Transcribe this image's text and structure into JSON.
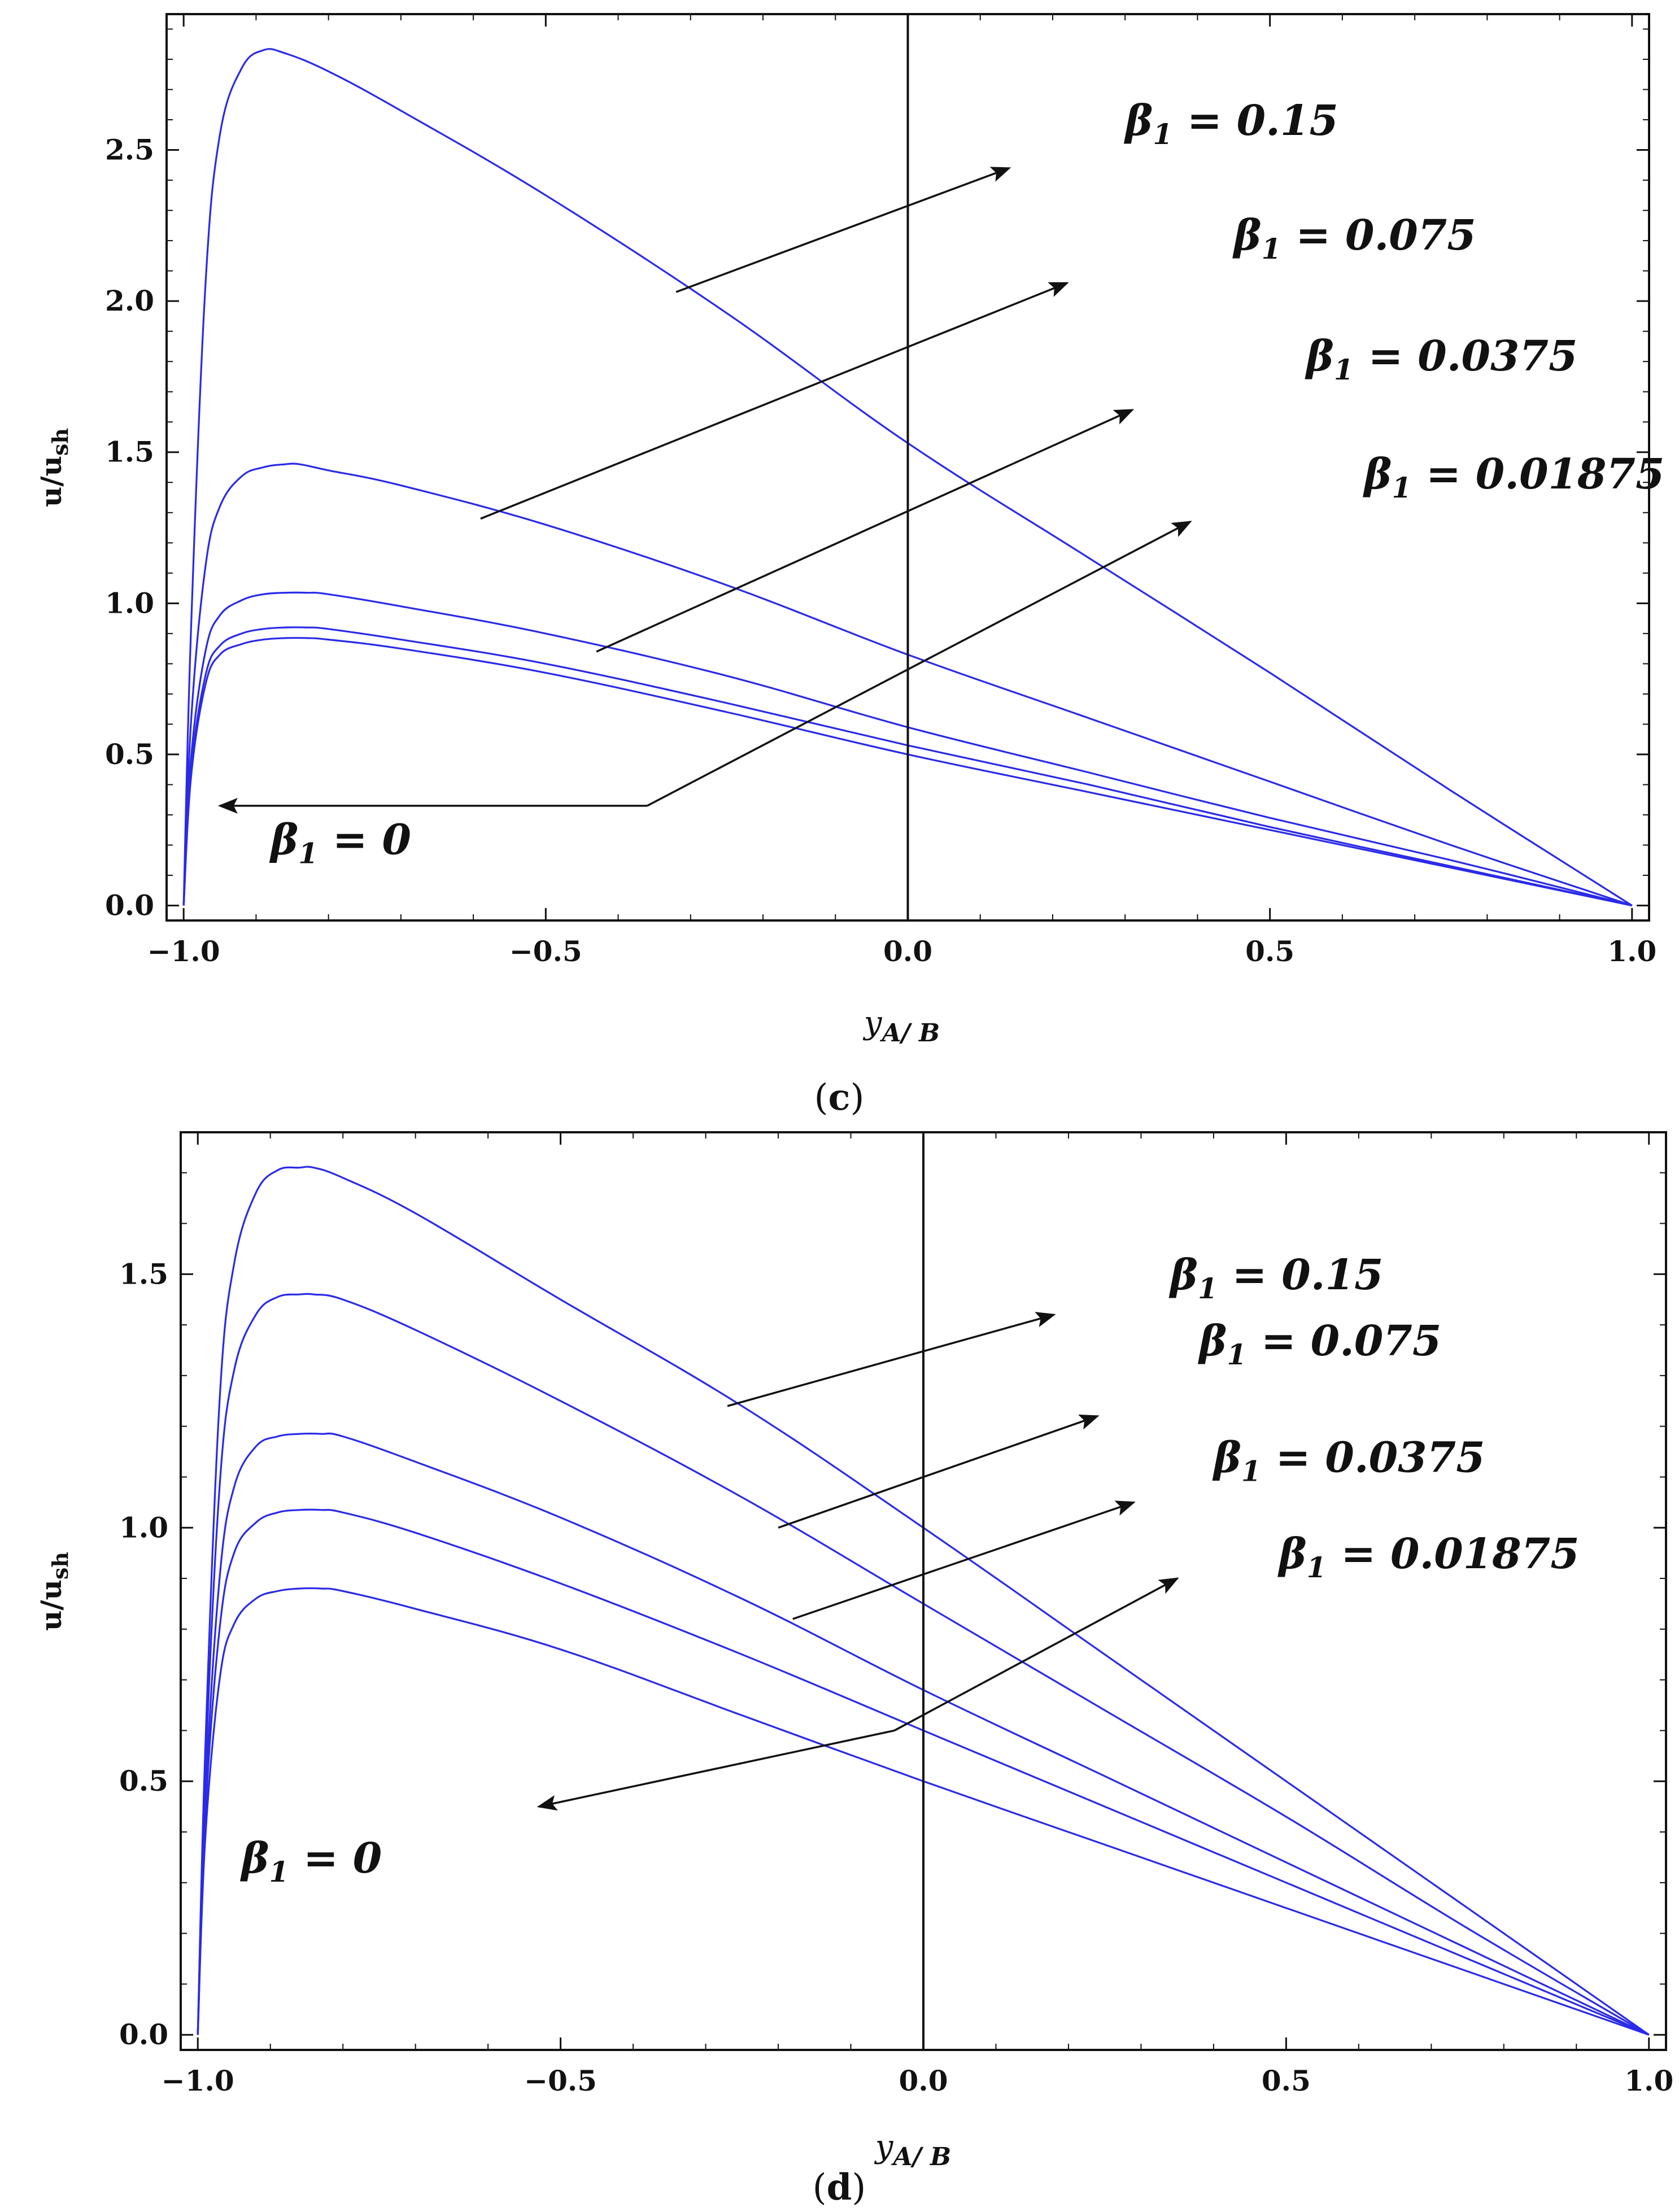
{
  "chart_data": [
    {
      "type": "line",
      "panel": "c",
      "caption_letter": "c",
      "xlabel": "y",
      "xlabel_sub": "A/ B",
      "ylabel": "u/u",
      "ylabel_sub": "sh",
      "xlim": [
        -1.0,
        1.0
      ],
      "ylim": [
        0.0,
        2.9
      ],
      "xticks": [
        "-1.0",
        "-0.5",
        "0.0",
        "0.5",
        "1.0"
      ],
      "yticks": [
        "0.0",
        "0.5",
        "1.0",
        "1.5",
        "2.0",
        "2.5"
      ],
      "xtick_values": [
        -1.0,
        -0.5,
        0.0,
        0.5,
        1.0
      ],
      "ytick_values": [
        0.0,
        0.5,
        1.0,
        1.5,
        2.0,
        2.5
      ],
      "line_color": "#2a2ae8",
      "series": [
        {
          "name": "β1 = 0.15",
          "beta": 0.15,
          "x": [
            -1.0,
            -0.99,
            -0.97,
            -0.95,
            -0.92,
            -0.89,
            -0.86,
            -0.8,
            -0.7,
            -0.5,
            -0.25,
            0.0,
            0.25,
            0.5,
            0.75,
            1.0
          ],
          "y": [
            0.0,
            0.9,
            2.05,
            2.55,
            2.77,
            2.83,
            2.82,
            2.76,
            2.63,
            2.35,
            1.96,
            1.53,
            1.15,
            0.77,
            0.38,
            0.0
          ]
        },
        {
          "name": "β1 = 0.075",
          "beta": 0.075,
          "x": [
            -1.0,
            -0.99,
            -0.97,
            -0.95,
            -0.92,
            -0.89,
            -0.86,
            -0.84,
            -0.8,
            -0.7,
            -0.5,
            -0.25,
            0.0,
            0.25,
            0.5,
            0.75,
            1.0
          ],
          "y": [
            0.0,
            0.6,
            1.12,
            1.32,
            1.42,
            1.45,
            1.46,
            1.46,
            1.44,
            1.39,
            1.26,
            1.06,
            0.83,
            0.62,
            0.41,
            0.2,
            0.0
          ]
        },
        {
          "name": "β1 = 0.0375",
          "beta": 0.0375,
          "x": [
            -1.0,
            -0.99,
            -0.97,
            -0.95,
            -0.92,
            -0.89,
            -0.86,
            -0.83,
            -0.8,
            -0.7,
            -0.5,
            -0.25,
            0.0,
            0.25,
            0.5,
            0.75,
            1.0
          ],
          "y": [
            0.0,
            0.48,
            0.84,
            0.96,
            1.01,
            1.03,
            1.035,
            1.035,
            1.03,
            0.99,
            0.9,
            0.76,
            0.59,
            0.44,
            0.29,
            0.15,
            0.0
          ]
        },
        {
          "name": "β1 = 0.01875",
          "beta": 0.01875,
          "x": [
            -1.0,
            -0.99,
            -0.97,
            -0.95,
            -0.92,
            -0.89,
            -0.86,
            -0.83,
            -0.8,
            -0.7,
            -0.5,
            -0.25,
            0.0,
            0.25,
            0.5,
            0.75,
            1.0
          ],
          "y": [
            0.0,
            0.44,
            0.76,
            0.86,
            0.9,
            0.915,
            0.92,
            0.92,
            0.915,
            0.88,
            0.8,
            0.67,
            0.53,
            0.4,
            0.26,
            0.13,
            0.0
          ]
        },
        {
          "name": "β1 = 0",
          "beta": 0,
          "x": [
            -1.0,
            -0.99,
            -0.97,
            -0.95,
            -0.92,
            -0.89,
            -0.86,
            -0.83,
            -0.8,
            -0.7,
            -0.5,
            -0.25,
            0.0,
            0.25,
            0.5,
            0.75,
            1.0
          ],
          "y": [
            0.0,
            0.42,
            0.73,
            0.83,
            0.865,
            0.88,
            0.885,
            0.885,
            0.88,
            0.85,
            0.77,
            0.64,
            0.5,
            0.375,
            0.25,
            0.125,
            0.0
          ]
        }
      ],
      "annotations": [
        {
          "label": "β1 = 0.15",
          "symbol": "β",
          "sub": "1",
          "rest": " = 0.15",
          "arrow_from": [
            -0.32,
            2.03
          ],
          "arrow_to": [
            0.14,
            2.44
          ],
          "text_at": [
            0.3,
            2.55
          ]
        },
        {
          "label": "β1 = 0.075",
          "symbol": "β",
          "sub": "1",
          "rest": " = 0.075",
          "arrow_from": [
            -0.59,
            1.28
          ],
          "arrow_to": [
            0.22,
            2.06
          ],
          "text_at": [
            0.45,
            2.17
          ]
        },
        {
          "label": "β1 = 0.0375",
          "symbol": "β",
          "sub": "1",
          "rest": " = 0.0375",
          "arrow_from": [
            -0.43,
            0.84
          ],
          "arrow_to": [
            0.31,
            1.64
          ],
          "text_at": [
            0.55,
            1.77
          ]
        },
        {
          "label": "β1 = 0.01875",
          "symbol": "β",
          "sub": "1",
          "rest": " = 0.01875",
          "arrow_from": [
            -0.36,
            0.33
          ],
          "arrow_to": [
            0.39,
            1.27
          ],
          "text_at": [
            0.63,
            1.38
          ]
        },
        {
          "label": "β1 = 0",
          "symbol": "β",
          "sub": "1",
          "rest": " = 0",
          "arrow_from": [
            -0.36,
            0.33
          ],
          "arrow_to": [
            -0.95,
            0.33
          ],
          "arrow_only_to_start": true,
          "text_at": [
            -0.88,
            0.17
          ]
        }
      ]
    },
    {
      "type": "line",
      "panel": "d",
      "caption_letter": "d",
      "xlabel": "y",
      "xlabel_sub": "A/ B",
      "ylabel": "u/u",
      "ylabel_sub": "sh",
      "xlim": [
        -1.0,
        1.0
      ],
      "ylim": [
        0.0,
        1.75
      ],
      "xticks": [
        "-1.0",
        "-0.5",
        "0.0",
        "0.5",
        "1.0"
      ],
      "yticks": [
        "0.0",
        "0.5",
        "1.0",
        "1.5"
      ],
      "xtick_values": [
        -1.0,
        -0.5,
        0.0,
        0.5,
        1.0
      ],
      "ytick_values": [
        0.0,
        0.5,
        1.0,
        1.5
      ],
      "line_color": "#2a2ae8",
      "series": [
        {
          "name": "β1 = 0.15",
          "beta": 0.15,
          "x": [
            -1.0,
            -0.99,
            -0.97,
            -0.95,
            -0.92,
            -0.89,
            -0.86,
            -0.84,
            -0.8,
            -0.7,
            -0.5,
            -0.25,
            0.0,
            0.25,
            0.5,
            0.75,
            1.0
          ],
          "y": [
            0.0,
            0.55,
            1.25,
            1.52,
            1.66,
            1.705,
            1.71,
            1.71,
            1.69,
            1.62,
            1.45,
            1.24,
            1.0,
            0.75,
            0.5,
            0.25,
            0.0
          ]
        },
        {
          "name": "β1 = 0.075",
          "beta": 0.075,
          "x": [
            -1.0,
            -0.99,
            -0.97,
            -0.95,
            -0.92,
            -0.89,
            -0.86,
            -0.84,
            -0.8,
            -0.7,
            -0.5,
            -0.25,
            0.0,
            0.25,
            0.5,
            0.75,
            1.0
          ],
          "y": [
            0.0,
            0.5,
            1.08,
            1.31,
            1.42,
            1.455,
            1.46,
            1.46,
            1.45,
            1.39,
            1.25,
            1.06,
            0.85,
            0.64,
            0.43,
            0.21,
            0.0
          ]
        },
        {
          "name": "β1 = 0.0375",
          "beta": 0.0375,
          "x": [
            -1.0,
            -0.99,
            -0.97,
            -0.95,
            -0.92,
            -0.89,
            -0.86,
            -0.83,
            -0.8,
            -0.7,
            -0.5,
            -0.25,
            0.0,
            0.25,
            0.5,
            0.75,
            1.0
          ],
          "y": [
            0.0,
            0.45,
            0.9,
            1.08,
            1.16,
            1.18,
            1.185,
            1.185,
            1.18,
            1.13,
            1.02,
            0.86,
            0.68,
            0.51,
            0.34,
            0.17,
            0.0
          ]
        },
        {
          "name": "β1 = 0.01875",
          "beta": 0.01875,
          "x": [
            -1.0,
            -0.99,
            -0.97,
            -0.95,
            -0.92,
            -0.89,
            -0.86,
            -0.83,
            -0.8,
            -0.7,
            -0.5,
            -0.25,
            0.0,
            0.25,
            0.5,
            0.75,
            1.0
          ],
          "y": [
            0.0,
            0.42,
            0.8,
            0.95,
            1.01,
            1.03,
            1.035,
            1.035,
            1.03,
            0.99,
            0.89,
            0.75,
            0.6,
            0.45,
            0.3,
            0.15,
            0.0
          ]
        },
        {
          "name": "β1 = 0",
          "beta": 0,
          "x": [
            -1.0,
            -0.99,
            -0.97,
            -0.95,
            -0.92,
            -0.89,
            -0.86,
            -0.83,
            -0.8,
            -0.7,
            -0.5,
            -0.25,
            0.0,
            0.25,
            0.5,
            0.75,
            1.0
          ],
          "y": [
            0.0,
            0.38,
            0.7,
            0.81,
            0.86,
            0.875,
            0.88,
            0.88,
            0.875,
            0.84,
            0.76,
            0.63,
            0.5,
            0.375,
            0.25,
            0.125,
            0.0
          ]
        }
      ],
      "annotations": [
        {
          "label": "β1 = 0.15",
          "symbol": "β",
          "sub": "1",
          "rest": " = 0.15",
          "arrow_from": [
            -0.27,
            1.24
          ],
          "arrow_to": [
            0.18,
            1.42
          ],
          "text_at": [
            0.34,
            1.47
          ]
        },
        {
          "label": "β1 = 0.075",
          "symbol": "β",
          "sub": "1",
          "rest": " = 0.075",
          "arrow_from": [
            -0.2,
            1.0
          ],
          "arrow_to": [
            0.24,
            1.22
          ],
          "text_at": [
            0.38,
            1.34
          ]
        },
        {
          "label": "β1 = 0.0375",
          "symbol": "β",
          "sub": "1",
          "rest": " = 0.0375",
          "arrow_from": [
            -0.18,
            0.82
          ],
          "arrow_to": [
            0.29,
            1.05
          ],
          "text_at": [
            0.4,
            1.11
          ]
        },
        {
          "label": "β1 = 0.01875",
          "symbol": "β",
          "sub": "1",
          "rest": " = 0.01875",
          "arrow_from": [
            -0.04,
            0.6
          ],
          "arrow_to": [
            0.35,
            0.9
          ],
          "text_at": [
            0.49,
            0.92
          ]
        },
        {
          "label": "β1 = 0",
          "symbol": "β",
          "sub": "1",
          "rest": " = 0",
          "arrow_from": [
            -0.04,
            0.6
          ],
          "arrow_to": [
            -0.53,
            0.45
          ],
          "arrow_only_to_start": true,
          "text_at": [
            -0.94,
            0.32
          ]
        }
      ]
    }
  ]
}
